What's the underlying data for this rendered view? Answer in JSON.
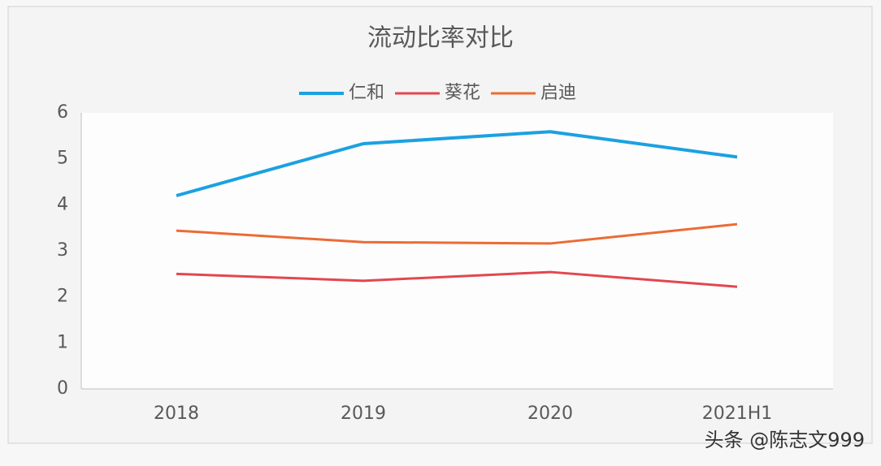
{
  "chart_data": {
    "type": "line",
    "title": "流动比率对比",
    "categories": [
      "2018",
      "2019",
      "2020",
      "2021H1"
    ],
    "series": [
      {
        "name": "仁和",
        "color": "#1ba1e2",
        "values": [
          4.2,
          5.33,
          5.59,
          5.04
        ]
      },
      {
        "name": "葵花",
        "color": "#e2474f",
        "values": [
          2.5,
          2.35,
          2.54,
          2.22
        ]
      },
      {
        "name": "启迪",
        "color": "#ec6b35",
        "values": [
          3.44,
          3.19,
          3.16,
          3.58
        ]
      }
    ],
    "ylim": [
      0,
      6
    ],
    "yticks": [
      0,
      1,
      2,
      3,
      4,
      5,
      6
    ],
    "grid": false,
    "legend": "top",
    "watermark": "头条 @陈志文999"
  }
}
